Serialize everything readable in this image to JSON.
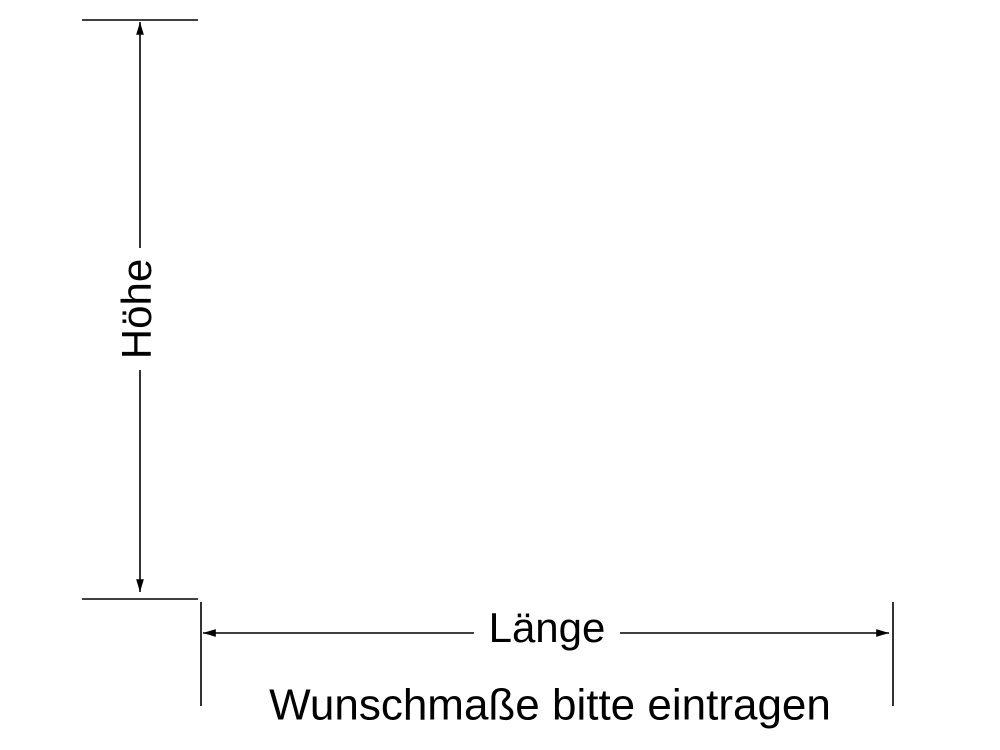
{
  "height_label": "Höhe",
  "length_label": "Länge",
  "note": "Wunschmaße bitte eintragen"
}
